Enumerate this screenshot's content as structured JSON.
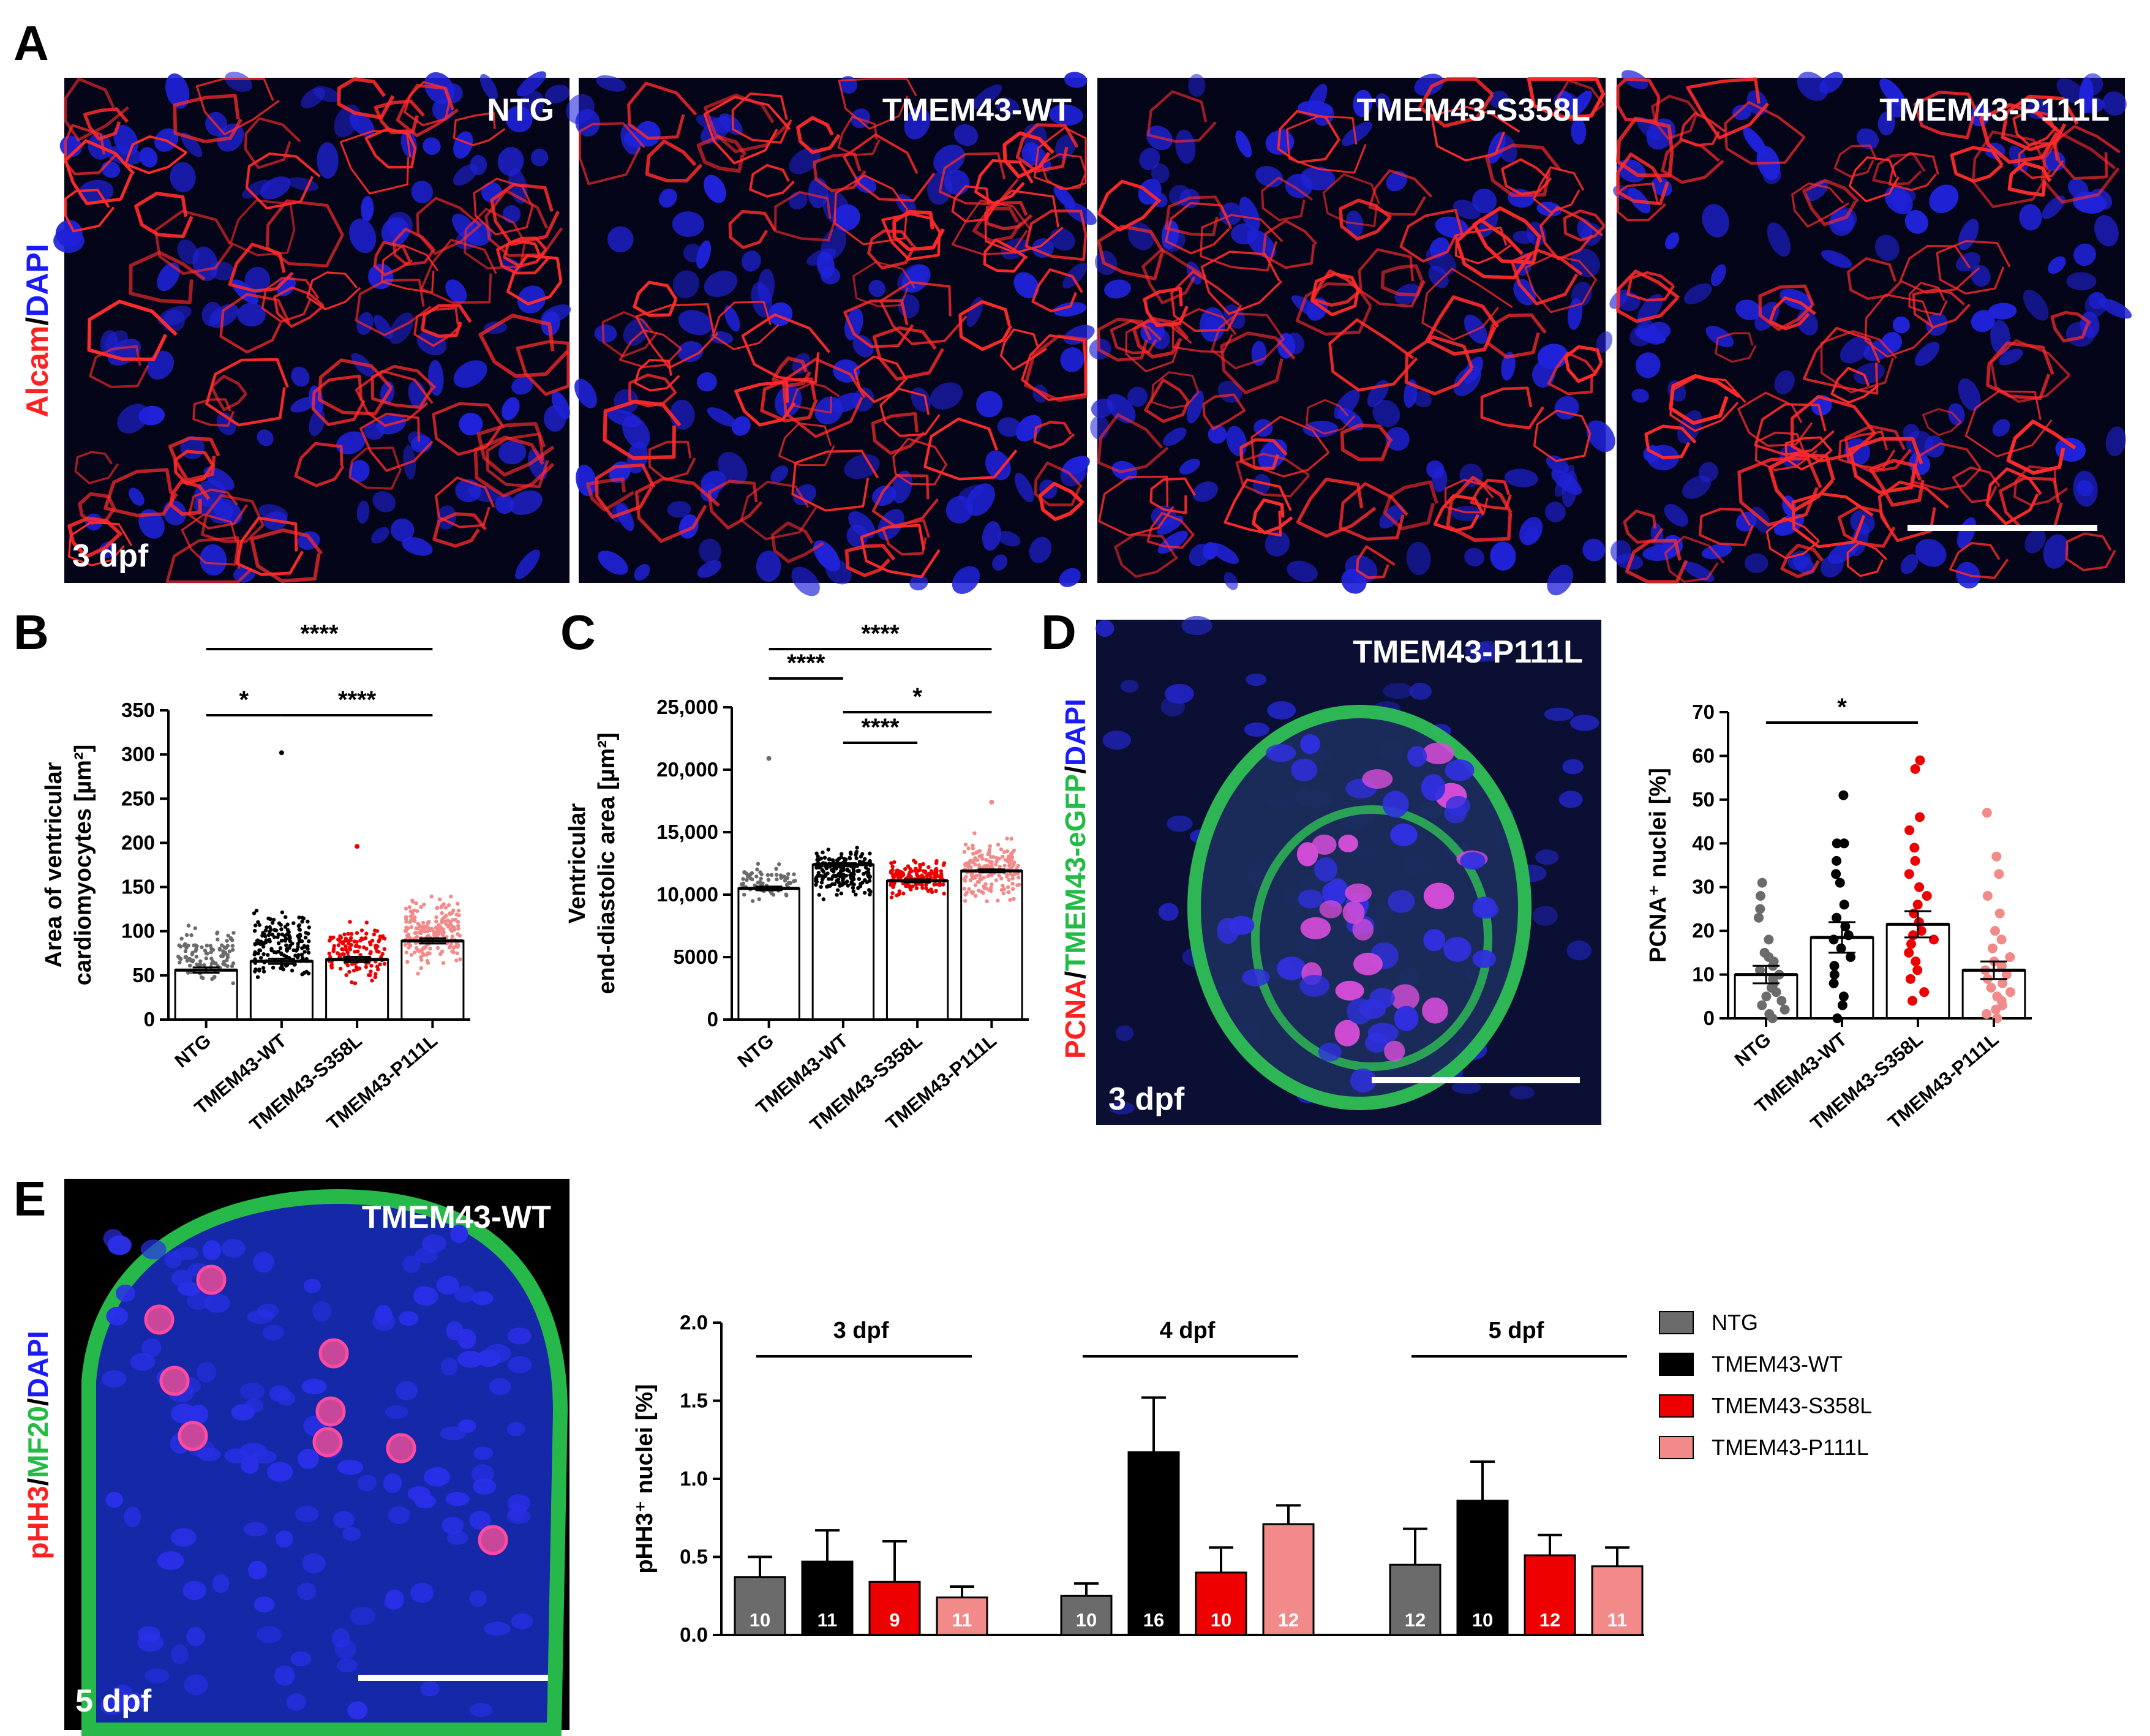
{
  "panels": {
    "A": {
      "letter": "A",
      "side_label_1": "Alcam",
      "side_label_sep": "/",
      "side_label_2": "DAPI",
      "stage": "3 dpf",
      "images": [
        "NTG",
        "TMEM43-WT",
        "TMEM43-S358L",
        "TMEM43-P111L"
      ]
    },
    "B": {
      "letter": "B"
    },
    "C": {
      "letter": "C"
    },
    "D": {
      "letter": "D",
      "image_title": "TMEM43-P111L",
      "side_label_1": "PCNA",
      "side_label_sep1": "/",
      "side_label_2": "TMEM43-eGFP",
      "side_label_sep2": "/",
      "side_label_3": "DAPI",
      "stage": "3 dpf"
    },
    "E": {
      "letter": "E",
      "image_title": "TMEM43-WT",
      "side_label_1": "pHH3",
      "side_label_sep1": "/",
      "side_label_2": "MF20",
      "side_label_sep2": "/",
      "side_label_3": "DAPI",
      "stage": "5 dpf"
    }
  },
  "colors": {
    "NTG": "#6b6b6b",
    "TMEM43-WT": "#000000",
    "TMEM43-S358L": "#ee0000",
    "TMEM43-P111L": "#f28a8a",
    "alcam": "#ff2020",
    "dapi": "#1a1aff",
    "egfp": "#22bb44"
  },
  "chart_data": [
    {
      "id": "B",
      "type": "scatter",
      "ylabel_line1": "Area of ventricular",
      "ylabel_line2": "cardiomyocytes [µm²]",
      "categories": [
        "NTG",
        "TMEM43-WT",
        "TMEM43-S358L",
        "TMEM43-P111L"
      ],
      "ylim": [
        0,
        350
      ],
      "yticks": [
        0,
        50,
        100,
        150,
        200,
        250,
        300,
        350
      ],
      "tick_labels": [
        "0",
        "50",
        "100",
        "150",
        "200",
        "250",
        "300",
        "350"
      ],
      "means": [
        56,
        66,
        68,
        89
      ],
      "sem": [
        3,
        3,
        3,
        3
      ],
      "point_ranges": [
        [
          22,
          150
        ],
        [
          25,
          170
        ],
        [
          20,
          150
        ],
        [
          35,
          180
        ]
      ],
      "outliers": [
        [],
        [
          302
        ],
        [
          196
        ],
        []
      ],
      "n_points": [
        100,
        160,
        130,
        200
      ],
      "significance": [
        {
          "from": 0,
          "to": 3,
          "label": "****"
        },
        {
          "from": 0,
          "to": 1,
          "label": "*"
        },
        {
          "from": 1,
          "to": 3,
          "label": "****"
        }
      ]
    },
    {
      "id": "C",
      "type": "scatter",
      "ylabel_line1": "Ventricular",
      "ylabel_line2": "end-diastolic area [µm²]",
      "categories": [
        "NTG",
        "TMEM43-WT",
        "TMEM43-S358L",
        "TMEM43-P111L"
      ],
      "ylim": [
        0,
        25000
      ],
      "yticks": [
        0,
        5000,
        10000,
        15000,
        20000,
        25000
      ],
      "tick_labels": [
        "0",
        "5000",
        "10,000",
        "15,000",
        "20,000",
        "25,000"
      ],
      "means": [
        10500,
        12400,
        11100,
        11900
      ],
      "sem": [
        150,
        120,
        120,
        120
      ],
      "point_ranges": [
        [
          8500,
          14000
        ],
        [
          8000,
          14800
        ],
        [
          8800,
          14000
        ],
        [
          7500,
          16500
        ]
      ],
      "outliers": [
        [
          20900
        ],
        [],
        [],
        [
          17400
        ]
      ],
      "n_points": [
        70,
        180,
        150,
        170
      ],
      "significance": [
        {
          "from": 0,
          "to": 3,
          "label": "****"
        },
        {
          "from": 0,
          "to": 1,
          "label": "****"
        },
        {
          "from": 1,
          "to": 3,
          "label": "*"
        },
        {
          "from": 1,
          "to": 2,
          "label": "****"
        }
      ]
    },
    {
      "id": "D",
      "type": "scatter",
      "ylabel": "PCNA⁺ nuclei [%]",
      "categories": [
        "NTG",
        "TMEM43-WT",
        "TMEM43-S358L",
        "TMEM43-P111L"
      ],
      "ylim": [
        0,
        70
      ],
      "yticks": [
        0,
        10,
        20,
        30,
        40,
        50,
        60,
        70
      ],
      "tick_labels": [
        "0",
        "10",
        "20",
        "30",
        "40",
        "50",
        "60",
        "70"
      ],
      "means": [
        10,
        18.5,
        21.5,
        11
      ],
      "sem": [
        2,
        3.5,
        3,
        2
      ],
      "points": [
        [
          0,
          1,
          2,
          3,
          4,
          5,
          6,
          7,
          8,
          9,
          10,
          11,
          12,
          13,
          14,
          15,
          18,
          23,
          25,
          28,
          31
        ],
        [
          0,
          3,
          5,
          8,
          10,
          12,
          14,
          16,
          18,
          19,
          21,
          23,
          26,
          31,
          33,
          36,
          40,
          40,
          51
        ],
        [
          4,
          6,
          9,
          11,
          13,
          15,
          17,
          18,
          19,
          20,
          22,
          24,
          26,
          28,
          30,
          33,
          36,
          39,
          43,
          46,
          57,
          59
        ],
        [
          0,
          1,
          2,
          3,
          4,
          5,
          6,
          7,
          8,
          9,
          10,
          11,
          12,
          13,
          14,
          16,
          18,
          20,
          24,
          28,
          33,
          37,
          47
        ]
      ],
      "significance": [
        {
          "from": 0,
          "to": 2,
          "label": "*"
        }
      ]
    },
    {
      "id": "E",
      "type": "bar",
      "ylabel": "pHH3⁺ nuclei [%]",
      "groups": [
        "3 dpf",
        "4 dpf",
        "5 dpf"
      ],
      "series_names": [
        "NTG",
        "TMEM43-WT",
        "TMEM43-S358L",
        "TMEM43-P111L"
      ],
      "ylim": [
        0,
        2.0
      ],
      "yticks": [
        0,
        0.5,
        1.0,
        1.5,
        2.0
      ],
      "tick_labels": [
        "0.0",
        "0.5",
        "1.0",
        "1.5",
        "2.0"
      ],
      "values": [
        [
          0.37,
          0.47,
          0.34,
          0.24
        ],
        [
          0.25,
          1.17,
          0.4,
          0.71
        ],
        [
          0.45,
          0.86,
          0.51,
          0.44
        ]
      ],
      "errors": [
        [
          0.13,
          0.2,
          0.26,
          0.07
        ],
        [
          0.08,
          0.35,
          0.16,
          0.12
        ],
        [
          0.23,
          0.25,
          0.13,
          0.12
        ]
      ],
      "counts": [
        [
          "10",
          "11",
          "9",
          "11"
        ],
        [
          "10",
          "16",
          "10",
          "12"
        ],
        [
          "12",
          "10",
          "12",
          "11"
        ]
      ],
      "legend": [
        "NTG",
        "TMEM43-WT",
        "TMEM43-S358L",
        "TMEM43-P111L"
      ]
    }
  ]
}
